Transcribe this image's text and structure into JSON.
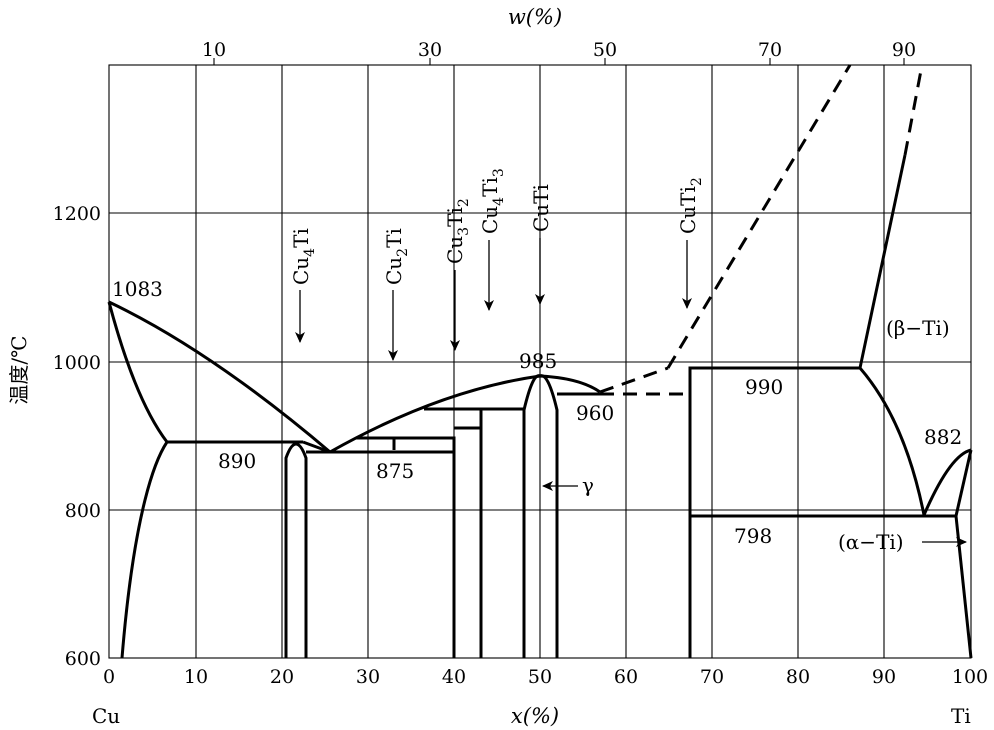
{
  "top_axis": {
    "title": "w(%)",
    "ticks": [
      "10",
      "30",
      "50",
      "70",
      "90"
    ]
  },
  "bottom_axis": {
    "title": "x(%)",
    "ticks": [
      "0",
      "10",
      "20",
      "30",
      "40",
      "50",
      "60",
      "70",
      "80",
      "90",
      "100"
    ],
    "left_end": "Cu",
    "right_end": "Ti"
  },
  "left_axis": {
    "title": "温度/℃",
    "ticks": [
      "600",
      "800",
      "1000",
      "1200"
    ]
  },
  "temperatures": {
    "cu_melt": "1083",
    "t985": "985",
    "t960": "960",
    "t990": "990",
    "t890": "890",
    "t875": "875",
    "t882": "882",
    "t798": "798"
  },
  "phases": {
    "cu4ti": [
      "Cu",
      "4",
      "Ti"
    ],
    "cu2ti": [
      "Cu",
      "2",
      "Ti"
    ],
    "cu3ti2": [
      "Cu",
      "3",
      "Ti",
      "2"
    ],
    "cu4ti3": [
      "Cu",
      "4",
      "Ti",
      "3"
    ],
    "cuti": "CuTi",
    "cuti2": [
      "CuTi",
      "2"
    ],
    "gamma": "γ",
    "beta_ti": "(β−Ti)",
    "alpha_ti": "(α−Ti)"
  }
}
